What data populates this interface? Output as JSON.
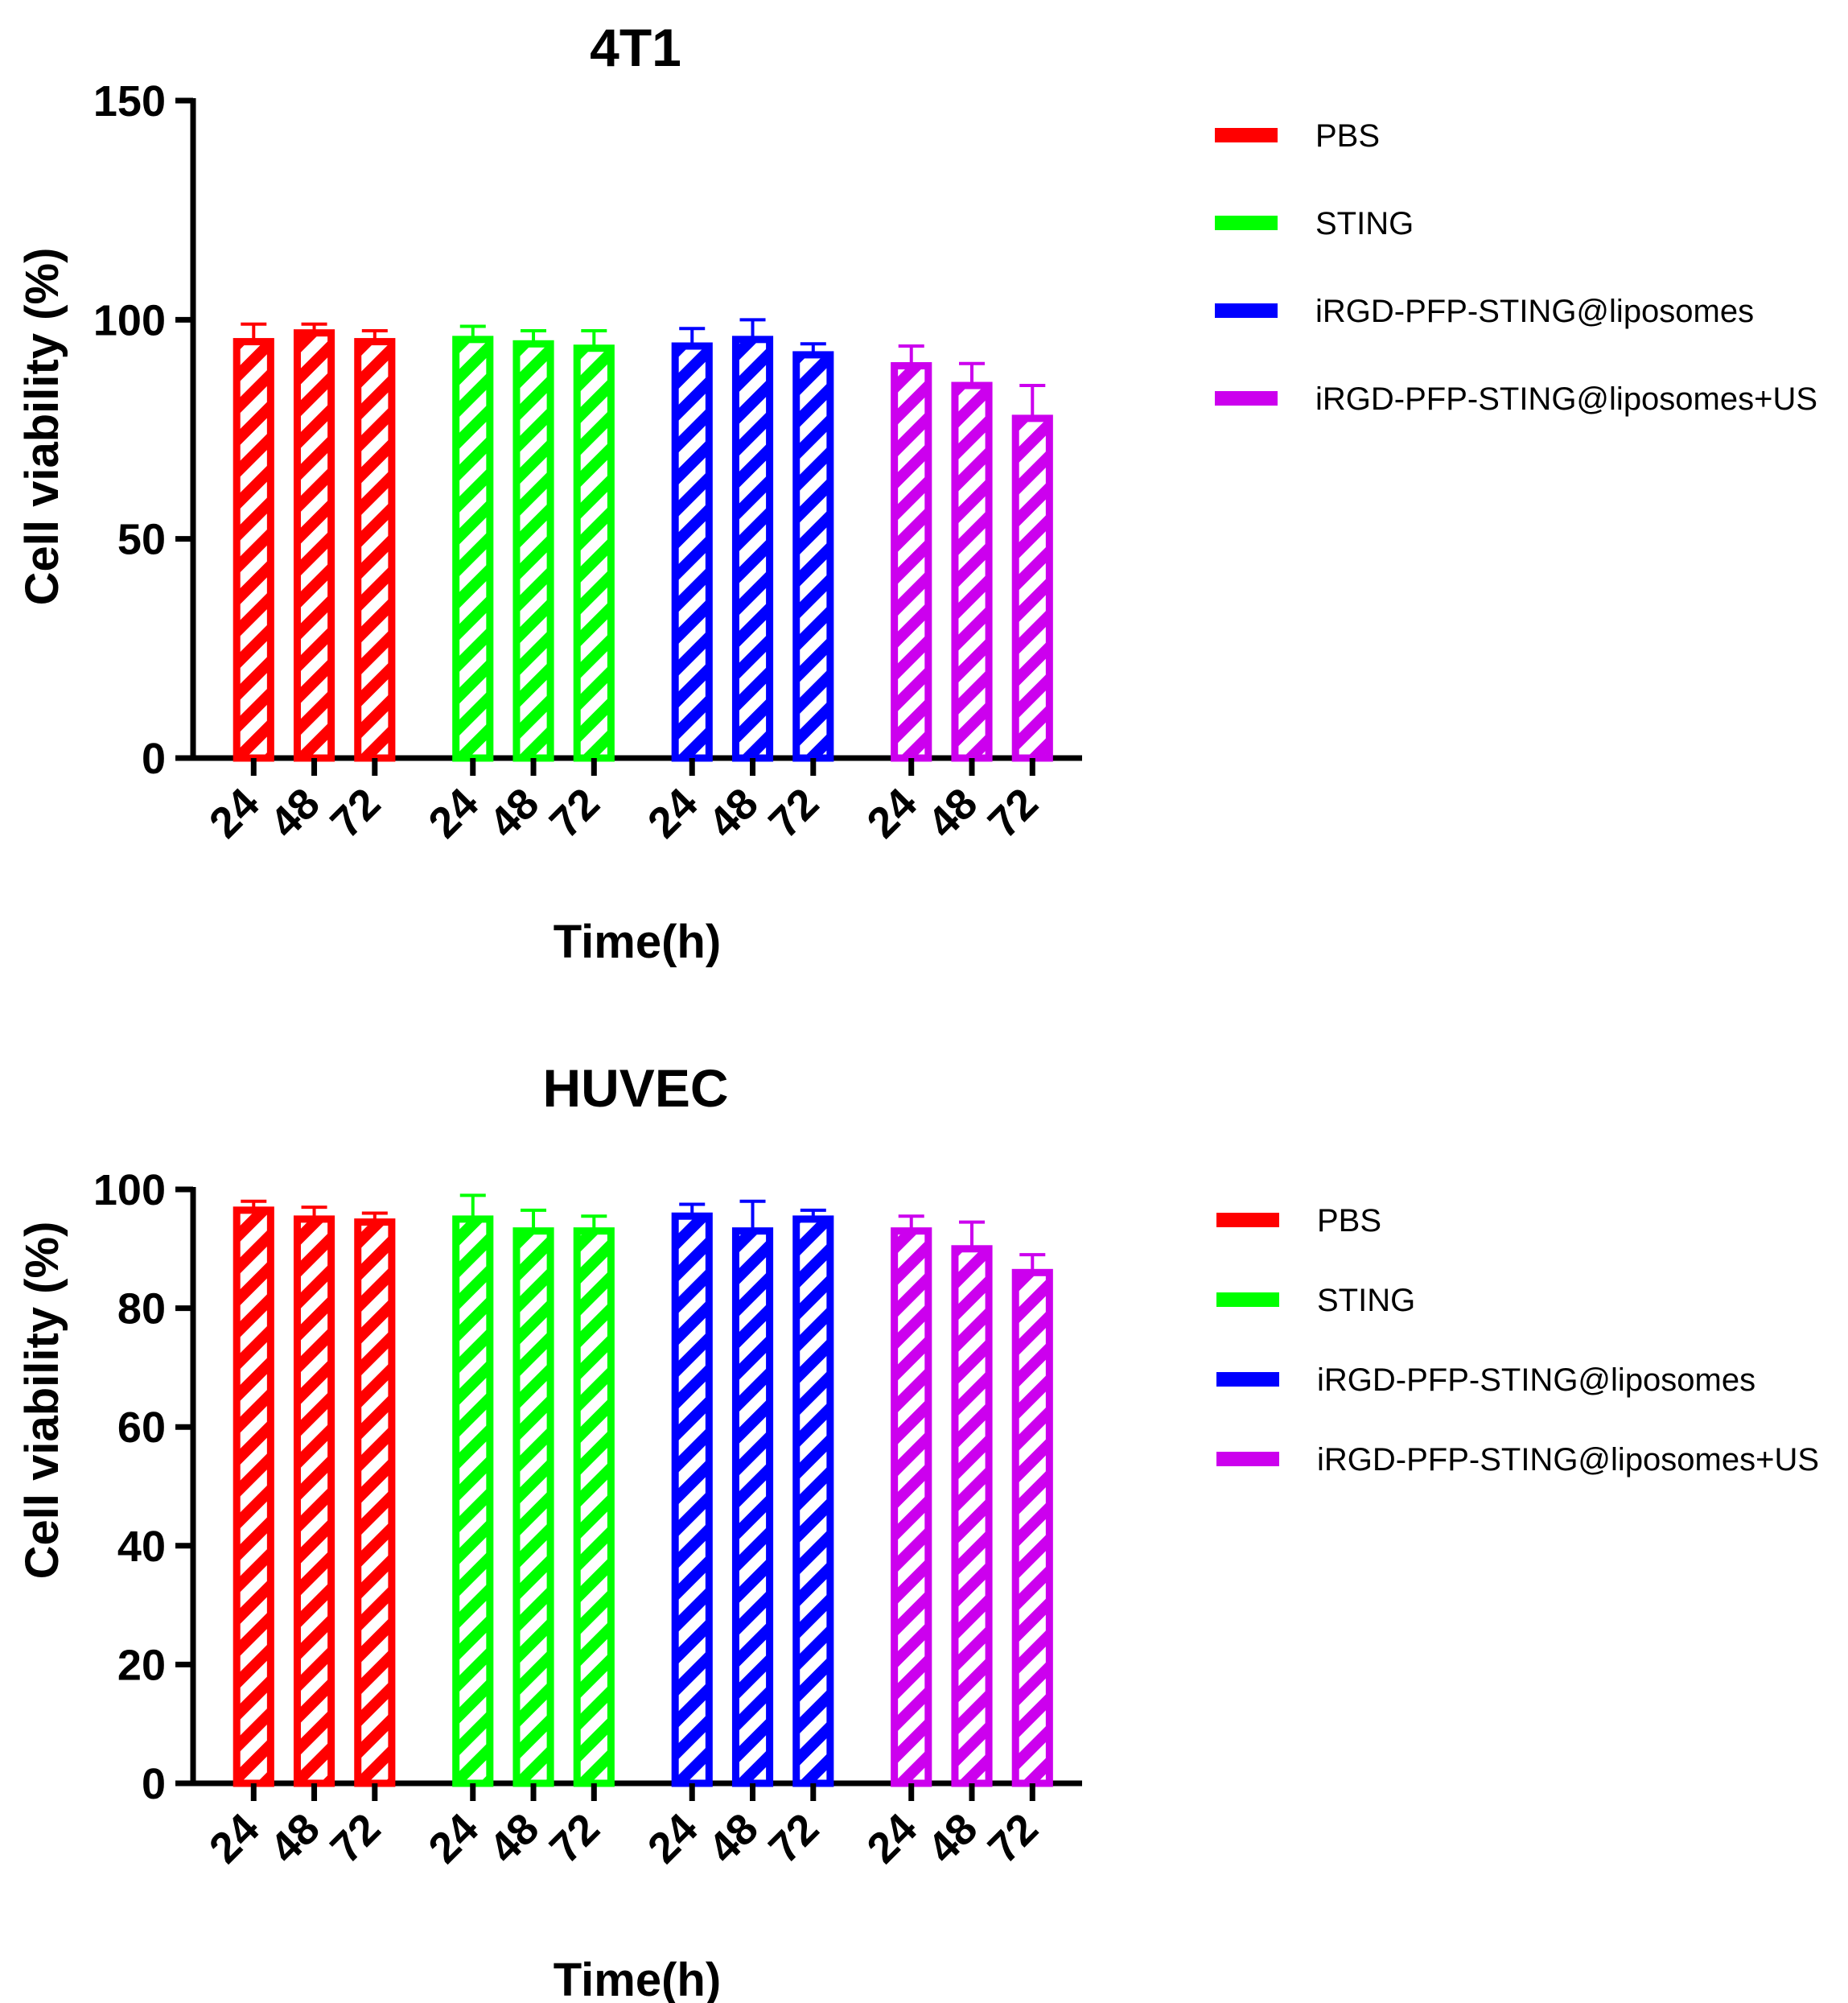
{
  "chart_data": [
    {
      "type": "bar",
      "title": "4T1",
      "xlabel": "Time(h)",
      "ylabel": "Cell viability (%)",
      "ylim": [
        0,
        150
      ],
      "yticks": [
        "0",
        "50",
        "100",
        "150"
      ],
      "categories": [
        "24",
        "48",
        "72"
      ],
      "series": [
        {
          "name": "PBS",
          "color": "#ff0000",
          "values": [
            95,
            97,
            95
          ],
          "errors": [
            4,
            2,
            2.5
          ]
        },
        {
          "name": "STING",
          "color": "#00ff00",
          "values": [
            95.5,
            94.5,
            93.5
          ],
          "errors": [
            3,
            3,
            4
          ]
        },
        {
          "name": "iRGD-PFP-STING@liposomes",
          "color": "#0000ff",
          "values": [
            94,
            95.5,
            92
          ],
          "errors": [
            4,
            4.5,
            2.5
          ]
        },
        {
          "name": "iRGD-PFP-STING@liposomes+US",
          "color": "#cc00ee",
          "values": [
            89.5,
            85,
            77.5
          ],
          "errors": [
            4.5,
            5,
            7.5
          ]
        }
      ],
      "legend_position": "right"
    },
    {
      "type": "bar",
      "title": "HUVEC",
      "xlabel": "Time(h)",
      "ylabel": "Cell viability (%)",
      "ylim": [
        0,
        100
      ],
      "yticks": [
        "0",
        "20",
        "40",
        "60",
        "80",
        "100"
      ],
      "categories": [
        "24",
        "48",
        "72"
      ],
      "series": [
        {
          "name": "PBS",
          "color": "#ff0000",
          "values": [
            96.5,
            95,
            94.5
          ],
          "errors": [
            1.5,
            2,
            1.5
          ]
        },
        {
          "name": "STING",
          "color": "#00ff00",
          "values": [
            95,
            93,
            93
          ],
          "errors": [
            4,
            3.5,
            2.5
          ]
        },
        {
          "name": "iRGD-PFP-STING@liposomes",
          "color": "#0000ff",
          "values": [
            95.5,
            93,
            95
          ],
          "errors": [
            2,
            5,
            1.5
          ]
        },
        {
          "name": "iRGD-PFP-STING@liposomes+US",
          "color": "#cc00ee",
          "values": [
            93,
            90,
            86
          ],
          "errors": [
            2.5,
            4.5,
            3
          ]
        }
      ],
      "legend_position": "right"
    }
  ]
}
